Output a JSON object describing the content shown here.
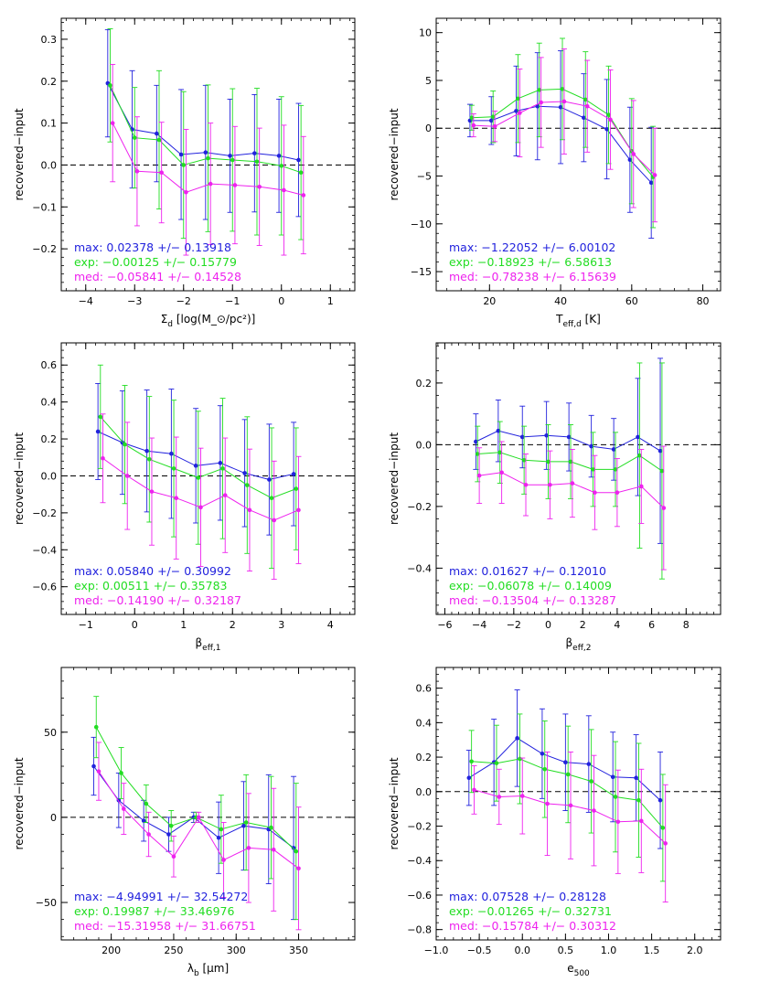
{
  "colors": {
    "max": "#2222dd",
    "exp": "#22dd22",
    "med": "#ee22ee",
    "axis": "#000000",
    "zero": "#000000"
  },
  "chart_data": [
    {
      "type": "line",
      "xlabel": "Σ_d [log(M_⊙/pc²)]",
      "ylabel": "recovered−input",
      "xlim": [
        -4.5,
        1.5
      ],
      "ylim": [
        -0.3,
        0.35
      ],
      "xticks": [
        -4,
        -3,
        -2,
        -1,
        0,
        1
      ],
      "xtick_labels": [
        "−4",
        "−3",
        "−2",
        "−1",
        "0",
        "1"
      ],
      "yticks": [
        -0.2,
        -0.1,
        0.0,
        0.1,
        0.2,
        0.3
      ],
      "ytick_labels": [
        "−0.2",
        "−0.1",
        "0.0",
        "0.1",
        "0.2",
        "0.3"
      ],
      "legend": [
        "max: 0.02378 +/− 0.13918",
        "exp: −0.00125 +/− 0.15779",
        "med: −0.05841 +/− 0.14528"
      ],
      "series": [
        {
          "key": "max",
          "x": [
            -3.55,
            -3.05,
            -2.55,
            -2.05,
            -1.55,
            -1.05,
            -0.55,
            -0.05,
            0.35
          ],
          "y": [
            0.195,
            0.085,
            0.075,
            0.025,
            0.03,
            0.022,
            0.028,
            0.022,
            0.012
          ],
          "err": [
            0.128,
            0.14,
            0.115,
            0.155,
            0.16,
            0.135,
            0.14,
            0.135,
            0.135
          ]
        },
        {
          "key": "exp",
          "x": [
            -3.5,
            -3.0,
            -2.5,
            -2.0,
            -1.5,
            -1.0,
            -0.5,
            0.0,
            0.4
          ],
          "y": [
            0.19,
            0.065,
            0.06,
            0.0,
            0.016,
            0.012,
            0.008,
            -0.002,
            -0.018
          ],
          "err": [
            0.135,
            0.12,
            0.165,
            0.175,
            0.175,
            0.17,
            0.175,
            0.165,
            0.16
          ]
        },
        {
          "key": "med",
          "x": [
            -3.45,
            -2.95,
            -2.45,
            -1.95,
            -1.45,
            -0.95,
            -0.45,
            0.05,
            0.45
          ],
          "y": [
            0.1,
            -0.015,
            -0.018,
            -0.065,
            -0.045,
            -0.048,
            -0.052,
            -0.06,
            -0.072
          ],
          "err": [
            0.14,
            0.13,
            0.12,
            0.15,
            0.145,
            0.14,
            0.14,
            0.155,
            0.14
          ]
        }
      ]
    },
    {
      "type": "line",
      "xlabel": "T_eff,d [K]",
      "ylabel": "recovered−input",
      "xlim": [
        5,
        85
      ],
      "ylim": [
        -17,
        11.5
      ],
      "xticks": [
        20,
        40,
        60,
        80
      ],
      "xtick_labels": [
        "20",
        "40",
        "60",
        "80"
      ],
      "yticks": [
        -15,
        -10,
        -5,
        0,
        5,
        10
      ],
      "ytick_labels": [
        "−15",
        "−10",
        "−5",
        "0",
        "5",
        "10"
      ],
      "legend": [
        "max: −1.22052 +/− 6.00102",
        "exp: −0.18923 +/− 6.58613",
        "med: −0.78238 +/− 6.15639"
      ],
      "series": [
        {
          "key": "max",
          "x": [
            14.5,
            20.5,
            27.5,
            33.5,
            40.0,
            46.5,
            53.0,
            59.5,
            65.5
          ],
          "y": [
            0.8,
            0.8,
            1.8,
            2.3,
            2.2,
            1.1,
            -0.1,
            -3.3,
            -5.7
          ],
          "err": [
            1.7,
            2.5,
            4.7,
            5.6,
            5.9,
            4.6,
            5.2,
            5.5,
            5.8
          ]
        },
        {
          "key": "exp",
          "x": [
            15.0,
            21.0,
            28.0,
            34.0,
            40.5,
            47.0,
            53.5,
            60.0,
            66.0
          ],
          "y": [
            1.1,
            1.2,
            3.1,
            4.0,
            4.1,
            3.0,
            1.4,
            -2.4,
            -5.1
          ],
          "err": [
            1.3,
            2.7,
            4.6,
            4.9,
            5.3,
            5.0,
            5.1,
            5.5,
            5.3
          ]
        },
        {
          "key": "med",
          "x": [
            15.5,
            21.5,
            28.5,
            34.5,
            41.0,
            47.5,
            54.0,
            60.5,
            66.5
          ],
          "y": [
            0.3,
            0.2,
            1.6,
            2.7,
            2.8,
            2.3,
            0.9,
            -2.7,
            -4.9
          ],
          "err": [
            1.2,
            1.6,
            4.6,
            4.7,
            5.5,
            4.8,
            5.2,
            5.6,
            4.9
          ]
        }
      ]
    },
    {
      "type": "line",
      "xlabel": "β_eff,1",
      "ylabel": "recovered−input",
      "xlim": [
        -1.5,
        4.5
      ],
      "ylim": [
        -0.75,
        0.72
      ],
      "xticks": [
        -1,
        0,
        1,
        2,
        3,
        4
      ],
      "xtick_labels": [
        "−1",
        "0",
        "1",
        "2",
        "3",
        "4"
      ],
      "yticks": [
        -0.6,
        -0.4,
        -0.2,
        0.0,
        0.2,
        0.4,
        0.6
      ],
      "ytick_labels": [
        "−0.6",
        "−0.4",
        "−0.2",
        "0.0",
        "0.2",
        "0.4",
        "0.6"
      ],
      "legend": [
        "max: 0.05840 +/− 0.30992",
        "exp: 0.00511 +/− 0.35783",
        "med: −0.14190 +/− 0.32187"
      ],
      "series": [
        {
          "key": "max",
          "x": [
            -0.75,
            -0.25,
            0.25,
            0.75,
            1.25,
            1.75,
            2.25,
            2.75,
            3.25
          ],
          "y": [
            0.24,
            0.18,
            0.135,
            0.12,
            0.055,
            0.07,
            0.015,
            -0.02,
            0.01
          ],
          "err": [
            0.26,
            0.28,
            0.33,
            0.35,
            0.31,
            0.31,
            0.29,
            0.3,
            0.28
          ]
        },
        {
          "key": "exp",
          "x": [
            -0.7,
            -0.2,
            0.3,
            0.8,
            1.3,
            1.8,
            2.3,
            2.8,
            3.3
          ],
          "y": [
            0.32,
            0.17,
            0.09,
            0.04,
            -0.01,
            0.04,
            -0.05,
            -0.12,
            -0.07
          ],
          "err": [
            0.28,
            0.32,
            0.34,
            0.37,
            0.36,
            0.38,
            0.37,
            0.38,
            0.33
          ]
        },
        {
          "key": "med",
          "x": [
            -0.65,
            -0.15,
            0.35,
            0.85,
            1.35,
            1.85,
            2.35,
            2.85,
            3.35
          ],
          "y": [
            0.095,
            0.0,
            -0.085,
            -0.12,
            -0.17,
            -0.105,
            -0.185,
            -0.24,
            -0.185
          ],
          "err": [
            0.24,
            0.29,
            0.29,
            0.33,
            0.32,
            0.31,
            0.33,
            0.32,
            0.29
          ]
        }
      ]
    },
    {
      "type": "line",
      "xlabel": "β_eff,2",
      "ylabel": "recovered−input",
      "xlim": [
        -6.5,
        10
      ],
      "ylim": [
        -0.55,
        0.33
      ],
      "xticks": [
        -6,
        -4,
        -2,
        0,
        2,
        4,
        6,
        8
      ],
      "xtick_labels": [
        "−6",
        "−4",
        "−2",
        "0",
        "2",
        "4",
        "6",
        "8"
      ],
      "yticks": [
        -0.4,
        -0.2,
        0.0,
        0.2
      ],
      "ytick_labels": [
        "−0.4",
        "−0.2",
        "0.0",
        "0.2"
      ],
      "legend": [
        "max: 0.01627 +/− 0.12010",
        "exp: −0.06078 +/− 0.14009",
        "med: −0.13504 +/− 0.13287"
      ],
      "series": [
        {
          "key": "max",
          "x": [
            -4.2,
            -2.9,
            -1.5,
            -0.1,
            1.2,
            2.5,
            3.8,
            5.2,
            6.5
          ],
          "y": [
            0.01,
            0.045,
            0.025,
            0.03,
            0.025,
            -0.005,
            -0.015,
            0.025,
            -0.02
          ],
          "err": [
            0.09,
            0.1,
            0.1,
            0.11,
            0.11,
            0.1,
            0.1,
            0.19,
            0.3
          ]
        },
        {
          "key": "exp",
          "x": [
            -4.1,
            -2.8,
            -1.4,
            0.0,
            1.3,
            2.6,
            3.9,
            5.3,
            6.6
          ],
          "y": [
            -0.03,
            -0.025,
            -0.05,
            -0.055,
            -0.055,
            -0.08,
            -0.08,
            -0.035,
            -0.085
          ],
          "err": [
            0.09,
            0.1,
            0.11,
            0.12,
            0.12,
            0.12,
            0.12,
            0.3,
            0.35
          ]
        },
        {
          "key": "med",
          "x": [
            -4.0,
            -2.7,
            -1.3,
            0.1,
            1.4,
            2.7,
            4.0,
            5.4,
            6.7
          ],
          "y": [
            -0.1,
            -0.09,
            -0.13,
            -0.13,
            -0.125,
            -0.155,
            -0.155,
            -0.135,
            -0.205
          ],
          "err": [
            0.09,
            0.1,
            0.1,
            0.11,
            0.11,
            0.12,
            0.11,
            0.12,
            0.2
          ]
        }
      ]
    },
    {
      "type": "line",
      "xlabel": "λ_b [μm]",
      "ylabel": "recovered−input",
      "xlim": [
        160,
        395
      ],
      "ylim": [
        -72,
        88
      ],
      "xticks": [
        200,
        250,
        300,
        350
      ],
      "xtick_labels": [
        "200",
        "250",
        "300",
        "350"
      ],
      "yticks": [
        -50,
        0,
        50
      ],
      "ytick_labels": [
        "−50",
        "0",
        "50"
      ],
      "legend": [
        "max: −4.94991 +/− 32.54272",
        "exp: 0.19987 +/− 33.46976",
        "med: −15.31958 +/− 31.66751"
      ],
      "series": [
        {
          "key": "max",
          "x": [
            186,
            206,
            226,
            246,
            266,
            286,
            306,
            326,
            346
          ],
          "y": [
            30,
            10,
            -2,
            -10,
            0,
            -12,
            -5,
            -7,
            -18
          ],
          "err": [
            17,
            16,
            12,
            10,
            3,
            21,
            26,
            32,
            42
          ]
        },
        {
          "key": "exp",
          "x": [
            188,
            208,
            228,
            248,
            268,
            288,
            308,
            328,
            348
          ],
          "y": [
            53,
            26,
            8,
            -5,
            0,
            -7,
            -3,
            -6,
            -20
          ],
          "err": [
            18,
            15,
            11,
            9,
            3,
            20,
            28,
            30,
            40
          ]
        },
        {
          "key": "med",
          "x": [
            190,
            210,
            230,
            250,
            270,
            290,
            310,
            330,
            350
          ],
          "y": [
            27,
            5,
            -10,
            -23,
            0,
            -25,
            -18,
            -19,
            -30
          ],
          "err": [
            17,
            15,
            13,
            12,
            3,
            22,
            32,
            36,
            36
          ]
        }
      ]
    },
    {
      "type": "line",
      "xlabel": "e_500",
      "ylabel": "recovered−input",
      "xlim": [
        -1.0,
        2.3
      ],
      "ylim": [
        -0.86,
        0.72
      ],
      "xticks": [
        -1.0,
        -0.5,
        0.0,
        0.5,
        1.0,
        1.5,
        2.0
      ],
      "xtick_labels": [
        "−1.0",
        "−0.5",
        "0.0",
        "0.5",
        "1.0",
        "1.5",
        "2.0"
      ],
      "yticks": [
        -0.8,
        -0.6,
        -0.4,
        -0.2,
        0.0,
        0.2,
        0.4,
        0.6
      ],
      "ytick_labels": [
        "−0.8",
        "−0.6",
        "−0.4",
        "−0.2",
        "0.0",
        "0.2",
        "0.4",
        "0.6"
      ],
      "legend": [
        "max: 0.07528 +/− 0.28128",
        "exp: −0.01265 +/− 0.32731",
        "med: −0.15784 +/− 0.30312"
      ],
      "series": [
        {
          "key": "max",
          "x": [
            -0.62,
            -0.33,
            -0.06,
            0.23,
            0.5,
            0.77,
            1.05,
            1.32,
            1.6
          ],
          "y": [
            0.08,
            0.17,
            0.31,
            0.22,
            0.17,
            0.16,
            0.085,
            0.08,
            -0.05
          ],
          "err": [
            0.16,
            0.25,
            0.28,
            0.26,
            0.28,
            0.28,
            0.26,
            0.25,
            0.28
          ]
        },
        {
          "key": "exp",
          "x": [
            -0.59,
            -0.3,
            -0.03,
            0.26,
            0.53,
            0.8,
            1.08,
            1.35,
            1.63
          ],
          "y": [
            0.175,
            0.165,
            0.19,
            0.13,
            0.1,
            0.06,
            -0.03,
            -0.05,
            -0.21
          ],
          "err": [
            0.18,
            0.22,
            0.26,
            0.28,
            0.28,
            0.3,
            0.32,
            0.33,
            0.31
          ]
        },
        {
          "key": "med",
          "x": [
            -0.56,
            -0.27,
            0.0,
            0.29,
            0.56,
            0.83,
            1.11,
            1.38,
            1.66
          ],
          "y": [
            0.01,
            -0.03,
            -0.025,
            -0.07,
            -0.08,
            -0.11,
            -0.175,
            -0.17,
            -0.3
          ],
          "err": [
            0.14,
            0.16,
            0.22,
            0.3,
            0.31,
            0.32,
            0.3,
            0.3,
            0.34
          ]
        }
      ]
    }
  ]
}
